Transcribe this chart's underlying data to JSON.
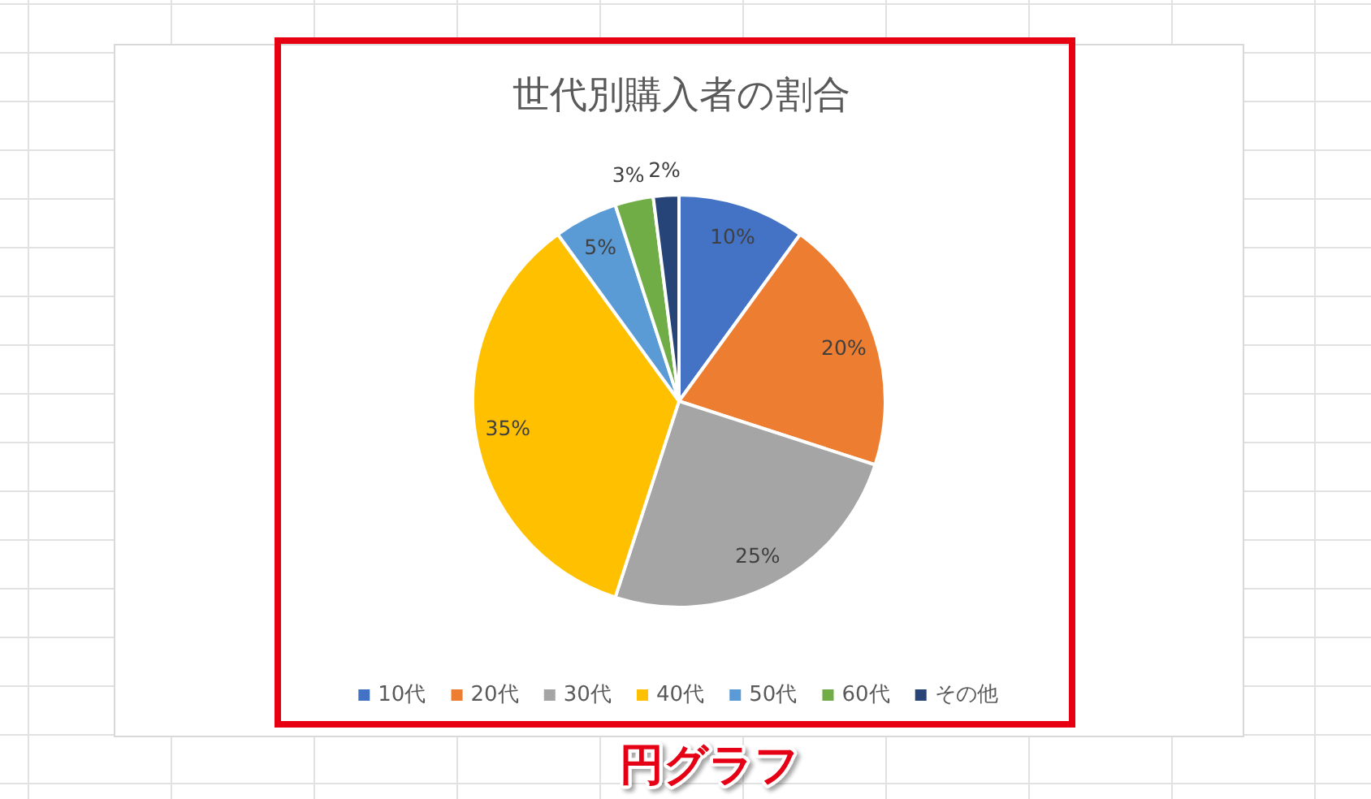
{
  "chart_data": {
    "type": "pie",
    "title": "世代別購入者の割合",
    "categories": [
      "10代",
      "20代",
      "30代",
      "40代",
      "50代",
      "60代",
      "その他"
    ],
    "values": [
      10,
      20,
      25,
      35,
      5,
      3,
      2
    ],
    "colors": [
      "#4472c4",
      "#ed7d31",
      "#a5a5a5",
      "#ffc000",
      "#5b9bd5",
      "#70ad47",
      "#264478"
    ],
    "value_labels": [
      "10%",
      "20%",
      "25%",
      "35%",
      "5%",
      "3%",
      "2%"
    ],
    "legend": "bottom",
    "annotations": [
      "円グラフ"
    ]
  }
}
